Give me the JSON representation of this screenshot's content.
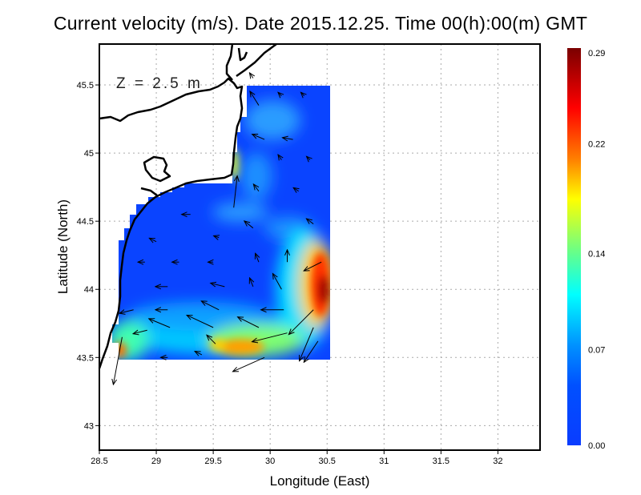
{
  "title": "Current velocity (m/s). Date 2015.12.25. Time 00(h):00(m) GMT",
  "depth_label": "Z = 2.5 m",
  "chart_data": {
    "type": "heatmap",
    "title": "Current velocity (m/s). Date 2015.12.25. Time 00(h):00(m) GMT",
    "xlabel": "Longitude (East)",
    "ylabel": "Latitude (North)",
    "xlim": [
      28.5,
      32.37
    ],
    "ylim": [
      42.82,
      45.8
    ],
    "xticks": [
      "28.5",
      "29",
      "29.5",
      "30",
      "30.5",
      "31",
      "31.5",
      "32"
    ],
    "xtick_values": [
      28.5,
      29,
      29.5,
      30,
      30.5,
      31,
      31.5,
      32
    ],
    "yticks": [
      "43",
      "43.5",
      "44",
      "44.5",
      "45",
      "45.5"
    ],
    "ytick_values": [
      43,
      43.5,
      44,
      44.5,
      45,
      45.5
    ],
    "grid": true,
    "colorbar": {
      "range": [
        0,
        0.29
      ],
      "tick_labels": [
        "0.29",
        "0.22",
        "0.14",
        "0.07",
        "0.00"
      ],
      "tick_values": [
        0.29,
        0.22,
        0.14,
        0.07,
        0.0
      ],
      "colors": [
        "#7a0000",
        "#ff0000",
        "#ff8000",
        "#ffff00",
        "#60ff90",
        "#00ffff",
        "#0090ff",
        "#0050ff",
        "#0a3cff"
      ]
    },
    "hotspots": [
      {
        "lon": 30.48,
        "lat": 43.98,
        "speed": 0.29
      },
      {
        "lon": 29.65,
        "lat": 43.55,
        "speed": 0.22
      },
      {
        "lon": 28.68,
        "lat": 43.55,
        "speed": 0.2
      },
      {
        "lon": 29.68,
        "lat": 44.95,
        "speed": 0.18
      }
    ],
    "vectors_units": "lon, lat, u (m/s east), v (m/s north)",
    "vectors": [
      [
        29.9,
        45.35,
        -0.05,
        0.08
      ],
      [
        30.1,
        45.42,
        -0.02,
        0.02
      ],
      [
        30.3,
        45.42,
        -0.02,
        0.02
      ],
      [
        30.2,
        45.1,
        -0.06,
        0.01
      ],
      [
        29.95,
        45.1,
        -0.07,
        0.03
      ],
      [
        30.1,
        44.95,
        -0.02,
        0.03
      ],
      [
        30.35,
        44.95,
        -0.02,
        0.02
      ],
      [
        29.68,
        44.6,
        0.02,
        0.18
      ],
      [
        29.9,
        44.72,
        -0.03,
        0.04
      ],
      [
        30.25,
        44.72,
        -0.03,
        0.02
      ],
      [
        30.38,
        44.48,
        -0.04,
        0.03
      ],
      [
        29.85,
        44.45,
        -0.05,
        0.04
      ],
      [
        29.3,
        44.55,
        -0.05,
        0.0
      ],
      [
        29.55,
        44.38,
        -0.03,
        0.01
      ],
      [
        29.0,
        44.35,
        -0.04,
        0.02
      ],
      [
        28.9,
        44.2,
        -0.04,
        0.0
      ],
      [
        29.2,
        44.2,
        -0.04,
        0.0
      ],
      [
        29.5,
        44.2,
        -0.03,
        0.0
      ],
      [
        29.9,
        44.2,
        -0.02,
        0.05
      ],
      [
        30.15,
        44.2,
        0.0,
        0.07
      ],
      [
        30.45,
        44.2,
        -0.1,
        -0.05
      ],
      [
        29.1,
        44.02,
        -0.07,
        0.0
      ],
      [
        29.6,
        44.02,
        -0.08,
        0.02
      ],
      [
        29.85,
        44.02,
        -0.02,
        0.05
      ],
      [
        30.1,
        44.0,
        -0.05,
        0.09
      ],
      [
        28.8,
        43.85,
        -0.08,
        -0.02
      ],
      [
        29.1,
        43.85,
        -0.07,
        0.0
      ],
      [
        29.55,
        43.85,
        -0.1,
        0.05
      ],
      [
        30.12,
        43.85,
        -0.13,
        0.0
      ],
      [
        30.38,
        43.85,
        -0.14,
        -0.14
      ],
      [
        28.92,
        43.7,
        -0.08,
        -0.02
      ],
      [
        29.12,
        43.72,
        -0.12,
        0.05
      ],
      [
        29.5,
        43.72,
        -0.15,
        0.07
      ],
      [
        29.9,
        43.72,
        -0.12,
        0.06
      ],
      [
        30.15,
        43.68,
        -0.2,
        -0.05
      ],
      [
        30.38,
        43.72,
        -0.08,
        -0.19
      ],
      [
        28.7,
        43.65,
        -0.05,
        -0.27
      ],
      [
        29.52,
        43.6,
        -0.05,
        0.05
      ],
      [
        29.95,
        43.5,
        -0.18,
        -0.08
      ],
      [
        30.42,
        43.62,
        -0.08,
        -0.12
      ],
      [
        29.1,
        43.5,
        -0.04,
        0.0
      ],
      [
        29.4,
        43.52,
        -0.04,
        0.02
      ],
      [
        29.85,
        45.55,
        -0.02,
        0.03
      ]
    ]
  }
}
